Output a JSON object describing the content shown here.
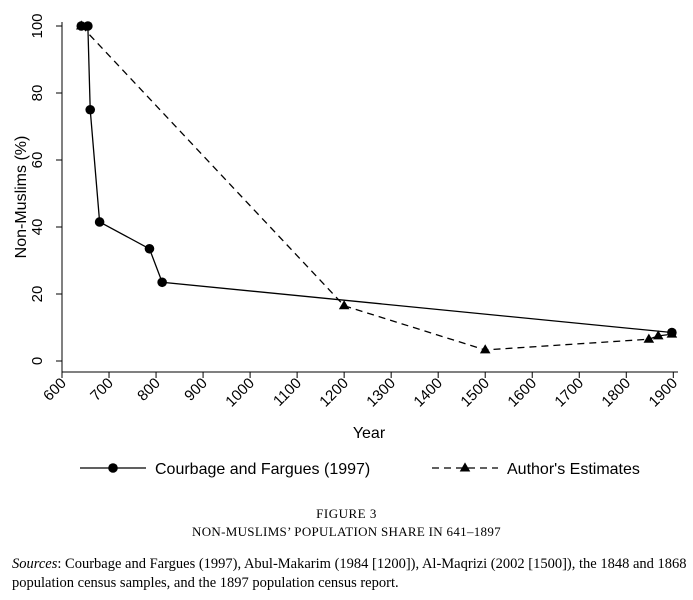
{
  "figure": {
    "number": "FIGURE 3",
    "title": "NON-MUSLIMS’ POPULATION SHARE IN 641–1897",
    "sources_label": "Sources",
    "sources_text": ": Courbage and Fargues (1997), Abul-Makarim (1984 [1200]), Al-Maqrizi (2002 [1500]), the 1848 and 1868 population census samples, and the 1897 population census report."
  },
  "chart_data": {
    "type": "line",
    "xlabel": "Year",
    "ylabel": "Non-Muslims (%)",
    "xlim": [
      600,
      1910
    ],
    "ylim": [
      0,
      100
    ],
    "xticks": [
      600,
      700,
      800,
      900,
      1000,
      1100,
      1200,
      1300,
      1400,
      1500,
      1600,
      1700,
      1800,
      1900
    ],
    "yticks": [
      0,
      20,
      40,
      60,
      80,
      100
    ],
    "grid": false,
    "legend_position": "bottom",
    "series": [
      {
        "name": "Courbage and Fargues (1997)",
        "marker": "circle",
        "line_style": "solid",
        "color": "#000000",
        "x": [
          641,
          655,
          660,
          680,
          786,
          813,
          1897
        ],
        "y": [
          100,
          100,
          75,
          41.5,
          33.5,
          23.5,
          8.5
        ]
      },
      {
        "name": "Author's Estimates",
        "marker": "triangle",
        "line_style": "dashed",
        "color": "#000000",
        "x": [
          641,
          1200,
          1500,
          1848,
          1868,
          1897
        ],
        "y": [
          100,
          16.5,
          3.3,
          6.5,
          7.5,
          8
        ]
      }
    ]
  }
}
